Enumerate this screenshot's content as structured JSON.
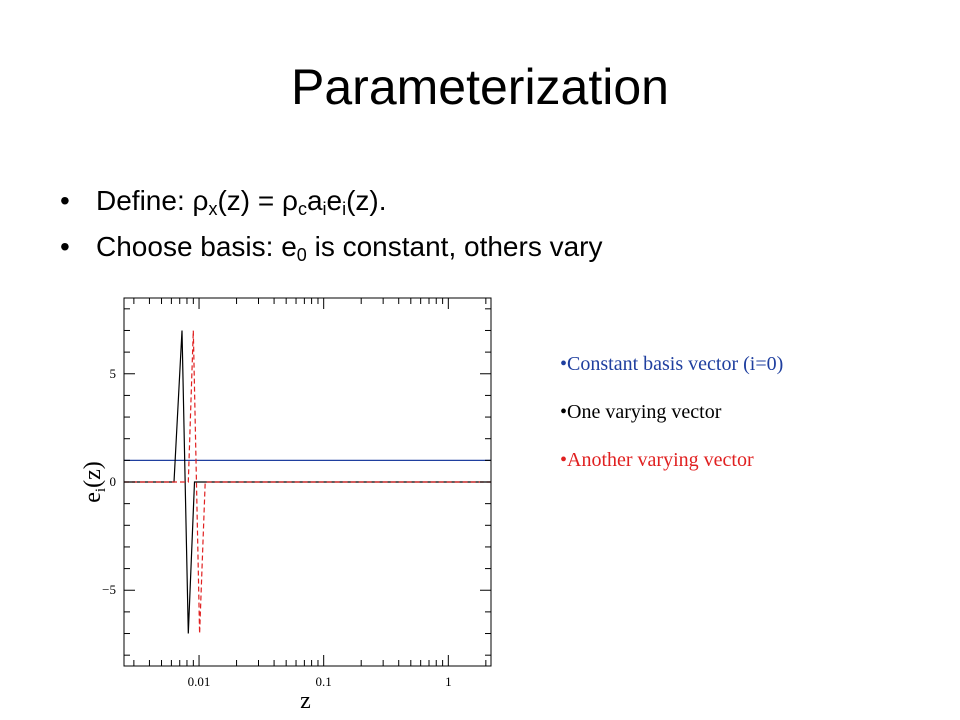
{
  "slide": {
    "title": "Parameterization"
  },
  "bullets": [
    {
      "parts": [
        "Define: ρ",
        "x",
        "(z) = ρ",
        "c",
        "a",
        "i",
        "e",
        "i",
        "(z)."
      ]
    },
    {
      "parts": [
        "Choose basis: e",
        "0",
        " is constant, others vary"
      ]
    }
  ],
  "legend": [
    {
      "label": "Constant basis vector (i=0)",
      "color": "#1f3f9f"
    },
    {
      "label": "One varying vector",
      "color": "#000000"
    },
    {
      "label": "Another varying vector",
      "color": "#e02020"
    }
  ],
  "chart_data": {
    "type": "line",
    "xscale": "log",
    "xlim": [
      0.0025,
      2.2
    ],
    "ylim": [
      -8.5,
      8.5
    ],
    "xlabel": "z",
    "ylabel": "e_i(z)",
    "xticks": [
      0.01,
      0.1,
      1
    ],
    "xtick_labels": [
      "0.01",
      "0.1",
      "1"
    ],
    "yticks": [
      -5,
      0,
      5
    ],
    "ytick_labels": [
      "−5",
      "0",
      "5"
    ],
    "series": [
      {
        "color": "#1f3f9f",
        "style": "solid",
        "x": [
          0.0025,
          2.2
        ],
        "y": [
          1,
          1
        ]
      },
      {
        "color": "#000000",
        "style": "solid",
        "x": [
          0.0025,
          0.0063,
          0.0073,
          0.0082,
          0.0092,
          0.0096,
          2.2
        ],
        "y": [
          0,
          0,
          7,
          -7,
          0,
          0,
          0
        ]
      },
      {
        "color": "#e02020",
        "style": "dashed",
        "x": [
          0.0025,
          0.0082,
          0.009,
          0.0101,
          0.0112,
          2.2
        ],
        "y": [
          0,
          0,
          7,
          -7,
          0,
          0
        ]
      }
    ]
  }
}
